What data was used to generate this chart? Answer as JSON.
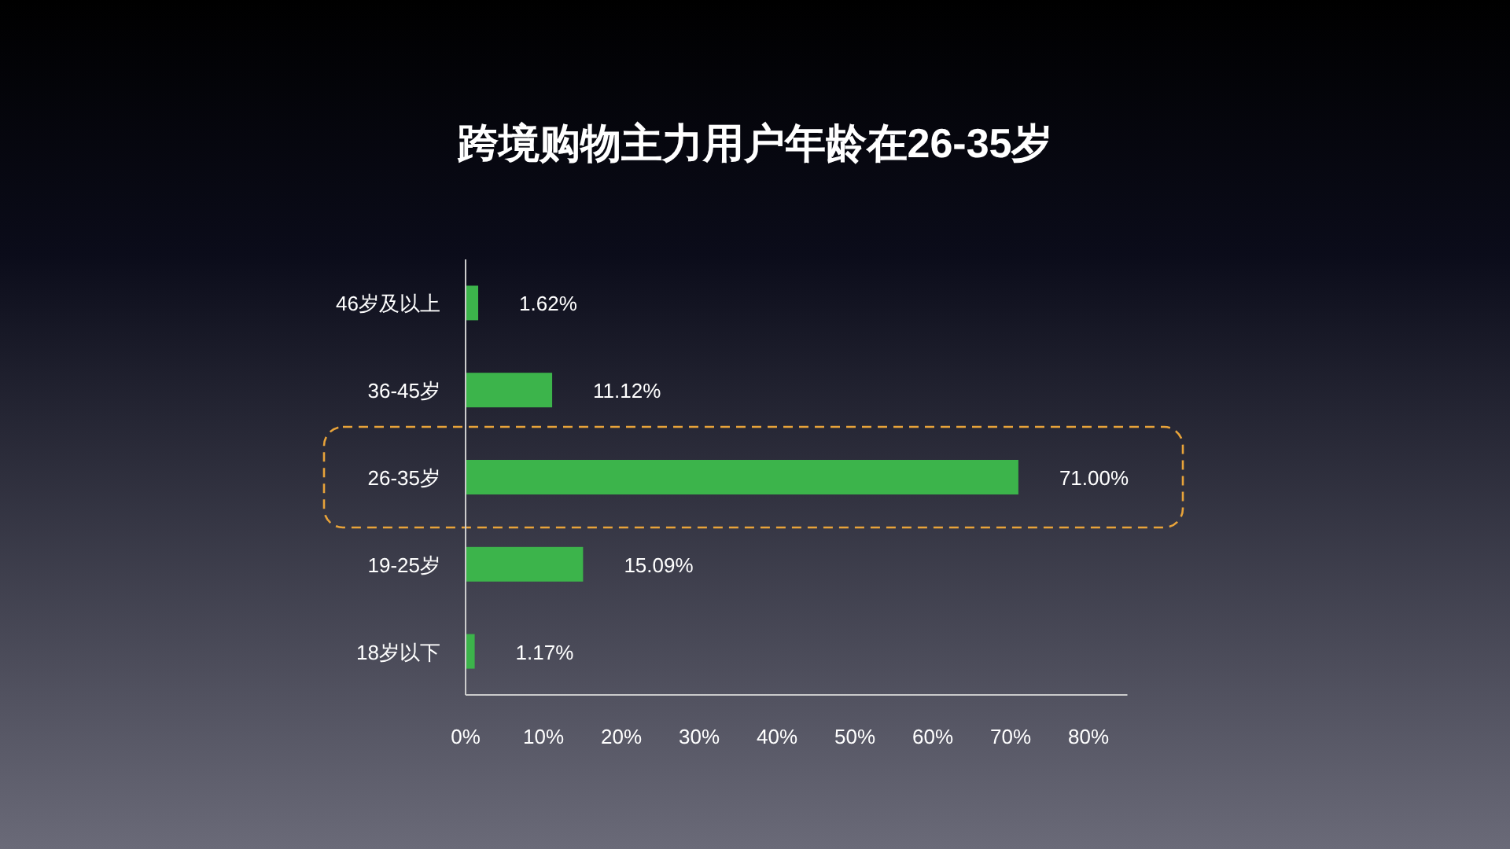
{
  "chart_data": {
    "type": "bar",
    "orientation": "horizontal",
    "title": "跨境购物主力用户年龄在26-35岁",
    "categories": [
      "46岁及以上",
      "36-45岁",
      "26-35岁",
      "19-25岁",
      "18岁以下"
    ],
    "values": [
      1.62,
      11.12,
      71.0,
      15.09,
      1.17
    ],
    "value_labels": [
      "1.62%",
      "11.12%",
      "71.00%",
      "15.09%",
      "1.17%"
    ],
    "color": "#3cb44b",
    "xlim": [
      0,
      85
    ],
    "xticks": [
      {
        "value": 0,
        "label": "0%"
      },
      {
        "value": 10,
        "label": "10%"
      },
      {
        "value": 20,
        "label": "20%"
      },
      {
        "value": 30,
        "label": "30%"
      },
      {
        "value": 40,
        "label": "40%"
      },
      {
        "value": 50,
        "label": "50%"
      },
      {
        "value": 60,
        "label": "60%"
      },
      {
        "value": 70,
        "label": "70%"
      },
      {
        "value": 80,
        "label": "80%"
      }
    ],
    "grid": false
  }
}
